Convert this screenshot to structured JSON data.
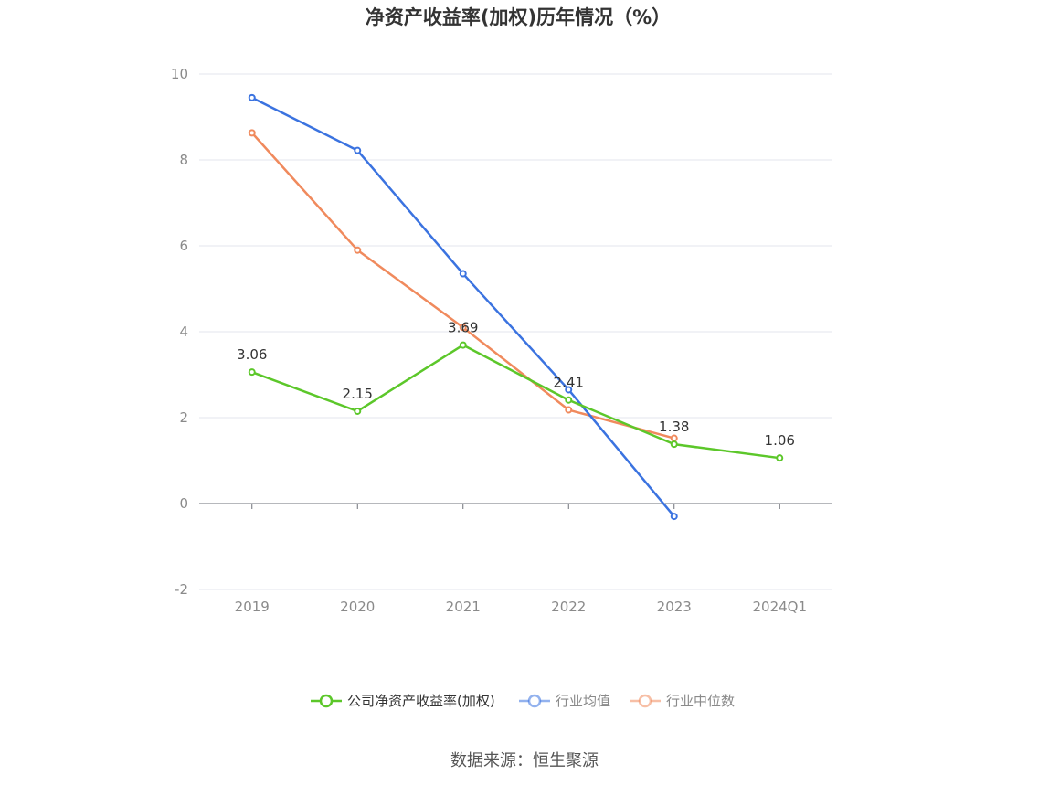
{
  "chart_data": {
    "type": "line",
    "title": "净资产收益率(加权)历年情况（%）",
    "categories": [
      "2019",
      "2020",
      "2021",
      "2022",
      "2023",
      "2024Q1"
    ],
    "ylim": [
      -2,
      10
    ],
    "yticks": [
      "-2",
      "0",
      "2",
      "4",
      "6",
      "8",
      "10"
    ],
    "grid": true,
    "legend_position": "bottom",
    "series": [
      {
        "name": "公司净资产收益率(加权)",
        "color": "#5cc72a",
        "values": [
          3.06,
          2.15,
          3.69,
          2.41,
          1.38,
          1.06
        ],
        "labels": [
          "3.06",
          "2.15",
          "3.69",
          "2.41",
          "1.38",
          "1.06"
        ]
      },
      {
        "name": "行业均值",
        "color": "#3b73e0",
        "values": [
          9.45,
          8.22,
          5.35,
          2.65,
          -0.3,
          null
        ]
      },
      {
        "name": "行业中位数",
        "color": "#f08a5d",
        "values": [
          8.63,
          5.9,
          4.1,
          2.18,
          1.52,
          null
        ]
      }
    ],
    "source": "数据来源：恒生聚源"
  }
}
